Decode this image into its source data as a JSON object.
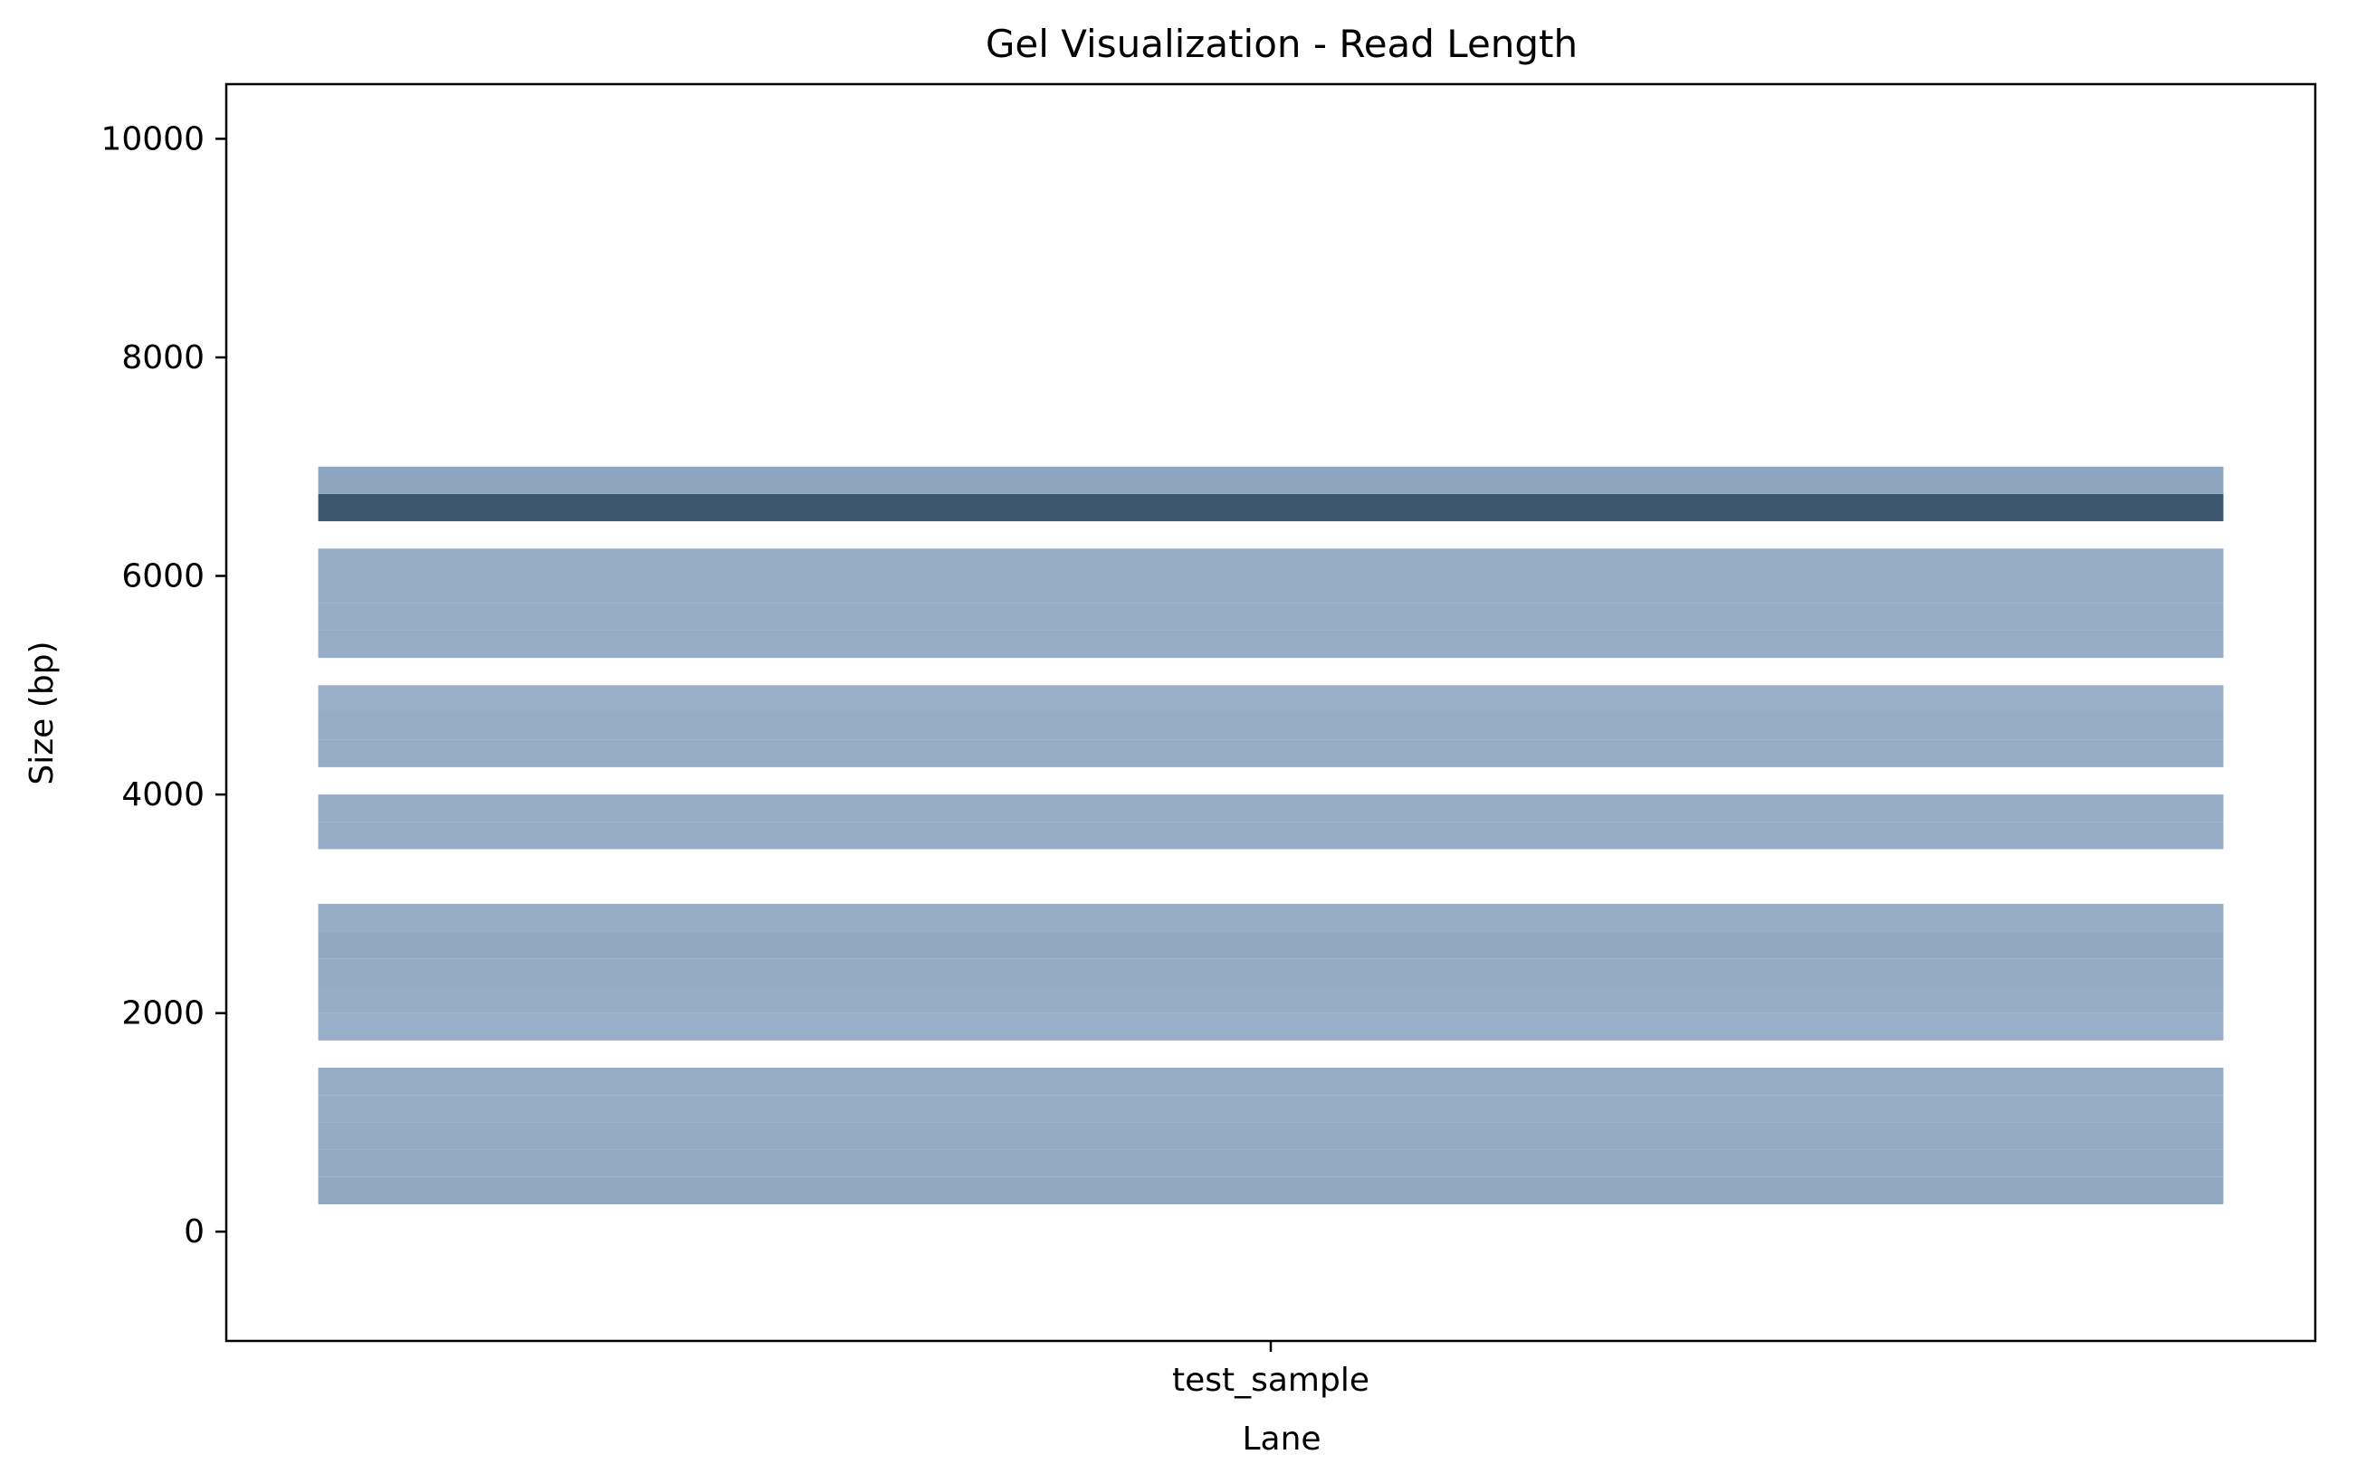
{
  "chart_data": {
    "type": "bar",
    "title": "Gel Visualization - Read Length",
    "xlabel": "Lane",
    "ylabel": "Size (bp)",
    "categories": [
      "test_sample"
    ],
    "ylim": [
      -1000,
      10500
    ],
    "yticks": [
      0,
      2000,
      4000,
      6000,
      8000,
      10000
    ],
    "grid": false,
    "legend": "none",
    "bands": [
      {
        "lane": "test_sample",
        "from": 250,
        "to": 500,
        "intensity": 0.38
      },
      {
        "lane": "test_sample",
        "from": 500,
        "to": 750,
        "intensity": 0.37
      },
      {
        "lane": "test_sample",
        "from": 750,
        "to": 1000,
        "intensity": 0.36
      },
      {
        "lane": "test_sample",
        "from": 1000,
        "to": 1250,
        "intensity": 0.35
      },
      {
        "lane": "test_sample",
        "from": 1250,
        "to": 1500,
        "intensity": 0.35
      },
      {
        "lane": "test_sample",
        "from": 1750,
        "to": 2000,
        "intensity": 0.33
      },
      {
        "lane": "test_sample",
        "from": 2000,
        "to": 2250,
        "intensity": 0.34
      },
      {
        "lane": "test_sample",
        "from": 2250,
        "to": 2500,
        "intensity": 0.36
      },
      {
        "lane": "test_sample",
        "from": 2500,
        "to": 2750,
        "intensity": 0.38
      },
      {
        "lane": "test_sample",
        "from": 2750,
        "to": 3000,
        "intensity": 0.34
      },
      {
        "lane": "test_sample",
        "from": 3500,
        "to": 3750,
        "intensity": 0.34
      },
      {
        "lane": "test_sample",
        "from": 3750,
        "to": 4000,
        "intensity": 0.34
      },
      {
        "lane": "test_sample",
        "from": 4250,
        "to": 4500,
        "intensity": 0.34
      },
      {
        "lane": "test_sample",
        "from": 4500,
        "to": 4750,
        "intensity": 0.34
      },
      {
        "lane": "test_sample",
        "from": 4750,
        "to": 5000,
        "intensity": 0.33
      },
      {
        "lane": "test_sample",
        "from": 5250,
        "to": 5500,
        "intensity": 0.34
      },
      {
        "lane": "test_sample",
        "from": 5500,
        "to": 5750,
        "intensity": 0.34
      },
      {
        "lane": "test_sample",
        "from": 5750,
        "to": 6000,
        "intensity": 0.34
      },
      {
        "lane": "test_sample",
        "from": 6000,
        "to": 6250,
        "intensity": 0.34
      },
      {
        "lane": "test_sample",
        "from": 6500,
        "to": 6750,
        "intensity": 1.0
      },
      {
        "lane": "test_sample",
        "from": 6750,
        "to": 7000,
        "intensity": 0.4
      }
    ]
  },
  "colors": {
    "band_max": "#3d5670",
    "band_min": "#c6daf4",
    "axes": "#000000",
    "background": "#ffffff"
  }
}
